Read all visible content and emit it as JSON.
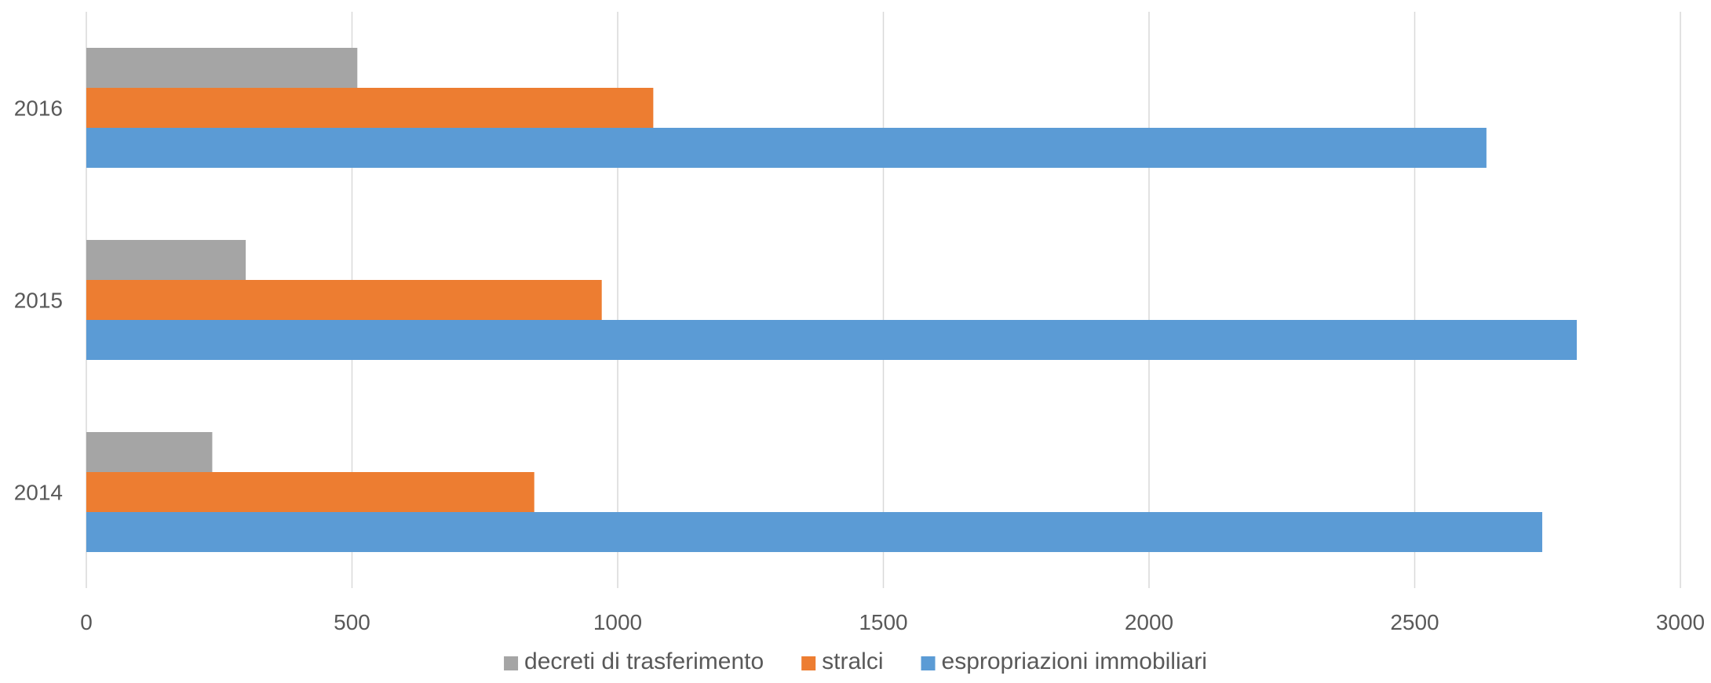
{
  "chart_data": {
    "type": "bar",
    "orientation": "horizontal",
    "categories": [
      "2014",
      "2015",
      "2016"
    ],
    "series": [
      {
        "name": "espropriazioni immobiliari",
        "color": "#5b9bd5",
        "values": [
          2740,
          2805,
          2635
        ]
      },
      {
        "name": "stralci",
        "color": "#ed7d31",
        "values": [
          843,
          970,
          1067
        ]
      },
      {
        "name": "decreti di trasferimento",
        "color": "#a5a5a5",
        "values": [
          237,
          300,
          510
        ]
      }
    ],
    "xlim": [
      0,
      3000
    ],
    "xticks": [
      "0",
      "500",
      "1000",
      "1500",
      "2000",
      "2500",
      "3000"
    ],
    "grid": true,
    "legend_position": "bottom",
    "legend_order": [
      "decreti di trasferimento",
      "stralci",
      "espropriazioni immobiliari"
    ]
  }
}
